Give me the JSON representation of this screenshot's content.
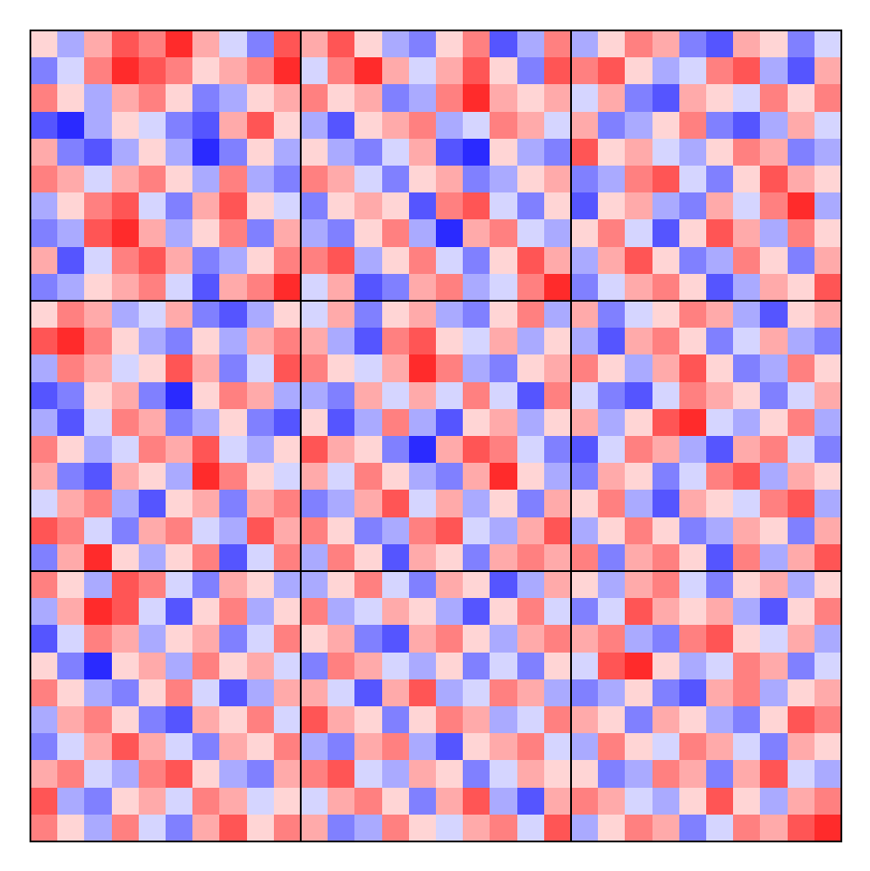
{
  "chart_data": [
    {
      "type": "heatmap",
      "zlim": [
        -0.6,
        0.6
      ],
      "tick_labels": false,
      "cells": [
        [
          0.1,
          -0.2,
          0.2,
          0.4,
          0.3,
          0.5,
          0.2,
          -0.1,
          -0.3,
          0.4
        ],
        [
          -0.3,
          -0.1,
          0.3,
          0.5,
          0.4,
          0.3,
          0.1,
          0.2,
          0.3,
          0.5
        ],
        [
          0.3,
          0.1,
          -0.2,
          0.2,
          0.3,
          0.1,
          -0.3,
          -0.2,
          0.1,
          0.2
        ],
        [
          -0.4,
          -0.5,
          -0.2,
          0.1,
          -0.1,
          -0.3,
          -0.4,
          0.2,
          0.4,
          0.1
        ],
        [
          0.2,
          -0.3,
          -0.4,
          -0.2,
          0.1,
          -0.2,
          -0.5,
          -0.3,
          0.1,
          -0.2
        ],
        [
          0.3,
          0.2,
          -0.1,
          0.2,
          0.3,
          0.1,
          -0.2,
          0.3,
          -0.2,
          -0.3
        ],
        [
          -0.2,
          0.1,
          0.3,
          0.4,
          -0.1,
          -0.3,
          0.2,
          0.4,
          0.1,
          -0.1
        ],
        [
          -0.3,
          -0.2,
          0.4,
          0.5,
          0.2,
          -0.2,
          0.1,
          0.3,
          -0.3,
          0.2
        ],
        [
          0.2,
          -0.4,
          -0.1,
          0.3,
          0.4,
          0.2,
          -0.3,
          -0.2,
          0.1,
          0.3
        ],
        [
          -0.3,
          -0.2,
          0.1,
          0.2,
          0.3,
          -0.1,
          -0.4,
          0.2,
          0.3,
          0.5
        ]
      ]
    },
    {
      "type": "heatmap",
      "zlim": [
        -0.6,
        0.6
      ],
      "tick_labels": false,
      "cells": [
        [
          0.2,
          0.4,
          0.1,
          -0.2,
          -0.3,
          0.1,
          0.3,
          -0.4,
          -0.2,
          0.3
        ],
        [
          -0.1,
          0.3,
          0.5,
          0.2,
          -0.1,
          0.2,
          0.4,
          0.1,
          -0.3,
          0.4
        ],
        [
          0.3,
          0.1,
          0.2,
          -0.3,
          -0.2,
          0.3,
          0.5,
          0.2,
          0.1,
          0.2
        ],
        [
          -0.2,
          -0.4,
          0.1,
          0.2,
          0.3,
          -0.2,
          -0.1,
          0.3,
          0.2,
          -0.1
        ],
        [
          0.1,
          -0.2,
          -0.3,
          -0.1,
          0.2,
          -0.4,
          -0.5,
          0.1,
          -0.2,
          -0.3
        ],
        [
          0.3,
          0.2,
          -0.1,
          -0.3,
          0.1,
          0.2,
          -0.3,
          -0.2,
          0.1,
          0.2
        ],
        [
          -0.3,
          0.1,
          0.2,
          0.1,
          -0.4,
          0.3,
          0.4,
          -0.1,
          -0.3,
          0.1
        ],
        [
          -0.2,
          -0.3,
          0.1,
          0.3,
          -0.2,
          -0.5,
          0.2,
          0.3,
          -0.1,
          -0.2
        ],
        [
          0.3,
          0.4,
          -0.2,
          0.1,
          0.3,
          -0.1,
          -0.3,
          0.1,
          0.4,
          0.2
        ],
        [
          -0.1,
          0.2,
          -0.4,
          -0.3,
          0.2,
          0.3,
          -0.2,
          -0.1,
          0.3,
          0.5
        ]
      ]
    },
    {
      "type": "heatmap",
      "zlim": [
        -0.6,
        0.6
      ],
      "tick_labels": false,
      "cells": [
        [
          -0.2,
          0.1,
          0.3,
          0.2,
          -0.3,
          -0.4,
          0.2,
          0.1,
          -0.3,
          -0.1
        ],
        [
          0.3,
          0.4,
          0.1,
          -0.2,
          -0.1,
          0.3,
          0.4,
          -0.2,
          -0.4,
          0.2
        ],
        [
          -0.1,
          0.2,
          -0.3,
          -0.4,
          0.2,
          0.1,
          -0.1,
          0.3,
          0.1,
          0.3
        ],
        [
          0.2,
          -0.3,
          -0.2,
          0.1,
          0.3,
          -0.3,
          -0.4,
          -0.2,
          0.2,
          -0.1
        ],
        [
          0.4,
          0.1,
          0.2,
          -0.1,
          -0.2,
          0.1,
          0.3,
          0.2,
          -0.3,
          -0.2
        ],
        [
          -0.3,
          -0.2,
          0.3,
          0.4,
          -0.1,
          -0.3,
          0.1,
          0.4,
          0.2,
          0.1
        ],
        [
          -0.4,
          0.1,
          0.2,
          -0.2,
          -0.3,
          0.2,
          -0.1,
          0.3,
          0.5,
          -0.2
        ],
        [
          0.1,
          0.3,
          -0.1,
          -0.4,
          0.1,
          0.4,
          0.2,
          -0.2,
          0.3,
          0.1
        ],
        [
          -0.2,
          0.2,
          0.4,
          0.1,
          -0.3,
          -0.2,
          0.3,
          0.1,
          -0.3,
          0.2
        ],
        [
          -0.3,
          -0.1,
          0.2,
          0.3,
          0.1,
          -0.4,
          -0.2,
          0.2,
          0.1,
          0.4
        ]
      ]
    },
    {
      "type": "heatmap",
      "zlim": [
        -0.6,
        0.6
      ],
      "tick_labels": false,
      "cells": [
        [
          0.1,
          0.3,
          0.2,
          -0.2,
          -0.1,
          0.2,
          -0.3,
          -0.4,
          -0.2,
          0.1
        ],
        [
          0.4,
          0.5,
          0.3,
          0.1,
          -0.2,
          -0.3,
          0.1,
          -0.2,
          0.2,
          0.3
        ],
        [
          -0.2,
          0.3,
          0.2,
          -0.1,
          0.1,
          0.4,
          0.2,
          -0.3,
          -0.1,
          0.4
        ],
        [
          -0.4,
          -0.3,
          0.1,
          0.2,
          -0.3,
          -0.5,
          0.1,
          0.3,
          0.2,
          -0.2
        ],
        [
          -0.2,
          -0.4,
          -0.1,
          0.3,
          0.2,
          -0.3,
          -0.2,
          0.1,
          -0.3,
          -0.4
        ],
        [
          0.3,
          0.1,
          -0.2,
          -0.1,
          0.3,
          0.2,
          0.4,
          -0.1,
          -0.2,
          0.1
        ],
        [
          0.2,
          -0.3,
          -0.4,
          0.2,
          0.1,
          -0.2,
          0.5,
          0.3,
          0.1,
          -0.1
        ],
        [
          -0.1,
          0.2,
          0.3,
          -0.2,
          -0.4,
          0.1,
          0.2,
          -0.3,
          0.2,
          0.3
        ],
        [
          0.4,
          0.3,
          -0.1,
          -0.3,
          0.2,
          0.3,
          -0.1,
          -0.2,
          0.4,
          0.2
        ],
        [
          -0.3,
          0.2,
          0.5,
          0.1,
          -0.2,
          0.1,
          0.3,
          -0.4,
          -0.1,
          0.3
        ]
      ]
    },
    {
      "type": "heatmap",
      "zlim": [
        -0.6,
        0.6
      ],
      "tick_labels": false,
      "cells": [
        [
          -0.1,
          0.2,
          -0.3,
          0.1,
          0.2,
          -0.2,
          -0.3,
          0.1,
          0.3,
          -0.2
        ],
        [
          0.2,
          -0.2,
          -0.4,
          0.3,
          0.4,
          0.1,
          -0.1,
          0.2,
          -0.2,
          0.1
        ],
        [
          0.3,
          0.1,
          -0.1,
          0.2,
          0.5,
          0.3,
          -0.2,
          -0.3,
          0.1,
          0.2
        ],
        [
          -0.2,
          -0.3,
          0.2,
          -0.1,
          0.2,
          -0.1,
          0.3,
          -0.1,
          -0.4,
          0.3
        ],
        [
          0.1,
          -0.4,
          -0.2,
          0.3,
          -0.2,
          -0.4,
          0.1,
          0.2,
          -0.2,
          0.1
        ],
        [
          0.4,
          0.2,
          0.1,
          -0.3,
          -0.5,
          0.2,
          0.4,
          0.3,
          -0.1,
          -0.3
        ],
        [
          0.2,
          -0.1,
          0.3,
          0.1,
          -0.2,
          -0.3,
          0.2,
          0.5,
          0.1,
          -0.2
        ],
        [
          -0.3,
          -0.2,
          0.2,
          0.4,
          -0.1,
          0.2,
          -0.2,
          0.1,
          -0.3,
          0.2
        ],
        [
          0.3,
          0.1,
          -0.3,
          -0.2,
          0.3,
          0.4,
          -0.1,
          -0.2,
          0.2,
          0.4
        ],
        [
          -0.2,
          0.3,
          0.1,
          -0.4,
          0.2,
          0.1,
          -0.3,
          0.2,
          0.3,
          0.2
        ]
      ]
    },
    {
      "type": "heatmap",
      "zlim": [
        -0.6,
        0.6
      ],
      "tick_labels": false,
      "cells": [
        [
          0.2,
          -0.3,
          -0.1,
          0.1,
          0.3,
          0.2,
          -0.2,
          -0.4,
          0.1,
          0.2
        ],
        [
          -0.2,
          -0.4,
          0.2,
          0.3,
          0.1,
          -0.3,
          -0.1,
          0.2,
          -0.2,
          -0.3
        ],
        [
          0.3,
          0.1,
          -0.2,
          0.2,
          0.4,
          0.1,
          -0.3,
          -0.2,
          0.3,
          0.1
        ],
        [
          -0.1,
          -0.3,
          -0.4,
          -0.1,
          0.3,
          0.2,
          0.1,
          -0.3,
          -0.1,
          0.2
        ],
        [
          0.2,
          -0.2,
          0.1,
          0.4,
          0.5,
          -0.1,
          -0.2,
          0.1,
          0.3,
          -0.2
        ],
        [
          -0.4,
          -0.1,
          0.3,
          0.2,
          -0.2,
          -0.4,
          0.2,
          0.3,
          -0.1,
          -0.3
        ],
        [
          -0.3,
          0.2,
          0.1,
          -0.3,
          -0.1,
          0.3,
          0.4,
          -0.2,
          0.2,
          0.1
        ],
        [
          0.1,
          0.3,
          -0.2,
          -0.4,
          0.2,
          0.1,
          -0.1,
          0.3,
          0.4,
          -0.2
        ],
        [
          -0.2,
          0.1,
          0.3,
          0.1,
          -0.3,
          -0.2,
          0.2,
          0.1,
          -0.3,
          0.2
        ],
        [
          0.3,
          -0.3,
          0.2,
          0.3,
          0.1,
          -0.4,
          0.3,
          -0.2,
          0.2,
          0.4
        ]
      ]
    },
    {
      "type": "heatmap",
      "zlim": [
        -0.6,
        0.6
      ],
      "tick_labels": false,
      "cells": [
        [
          0.3,
          0.1,
          -0.2,
          0.4,
          0.3,
          -0.1,
          -0.3,
          0.2,
          0.1,
          -0.2
        ],
        [
          -0.2,
          0.2,
          0.5,
          0.4,
          -0.1,
          -0.4,
          0.1,
          0.3,
          -0.2,
          0.1
        ],
        [
          -0.4,
          -0.1,
          0.3,
          0.2,
          -0.2,
          0.1,
          0.2,
          -0.3,
          -0.1,
          0.3
        ],
        [
          0.1,
          -0.3,
          -0.5,
          0.1,
          0.2,
          -0.2,
          0.3,
          0.1,
          0.2,
          -0.1
        ],
        [
          0.3,
          0.1,
          -0.2,
          -0.3,
          0.1,
          0.3,
          -0.1,
          -0.4,
          -0.2,
          0.2
        ],
        [
          -0.2,
          0.2,
          0.3,
          0.1,
          -0.3,
          -0.4,
          0.2,
          0.1,
          0.3,
          -0.1
        ],
        [
          -0.3,
          -0.1,
          0.2,
          0.4,
          0.2,
          -0.1,
          -0.3,
          0.2,
          0.1,
          0.3
        ],
        [
          0.2,
          0.3,
          -0.1,
          -0.2,
          0.3,
          0.4,
          0.1,
          -0.2,
          -0.3,
          0.2
        ],
        [
          0.4,
          -0.2,
          -0.3,
          0.1,
          0.2,
          -0.1,
          0.3,
          0.2,
          -0.1,
          0.1
        ],
        [
          0.3,
          0.1,
          -0.2,
          0.3,
          -0.1,
          -0.3,
          0.2,
          0.4,
          0.1,
          0.3
        ]
      ]
    },
    {
      "type": "heatmap",
      "zlim": [
        -0.6,
        0.6
      ],
      "tick_labels": false,
      "cells": [
        [
          -0.2,
          0.1,
          0.3,
          -0.1,
          -0.3,
          0.2,
          0.1,
          -0.4,
          -0.2,
          0.2
        ],
        [
          0.3,
          -0.2,
          -0.1,
          0.2,
          0.1,
          -0.2,
          -0.4,
          0.1,
          0.3,
          -0.1
        ],
        [
          0.1,
          0.2,
          -0.3,
          -0.4,
          0.2,
          0.3,
          0.1,
          -0.2,
          0.2,
          0.3
        ],
        [
          -0.3,
          0.3,
          0.2,
          -0.1,
          -0.2,
          0.1,
          -0.3,
          -0.1,
          -0.3,
          0.1
        ],
        [
          0.2,
          -0.1,
          -0.4,
          0.2,
          0.4,
          -0.2,
          -0.1,
          0.3,
          0.2,
          -0.2
        ],
        [
          0.4,
          0.2,
          0.1,
          -0.3,
          0.1,
          0.3,
          0.2,
          -0.2,
          -0.1,
          0.3
        ],
        [
          -0.2,
          -0.3,
          0.2,
          0.3,
          -0.2,
          -0.4,
          0.1,
          0.2,
          0.3,
          -0.1
        ],
        [
          0.3,
          0.4,
          -0.1,
          -0.2,
          0.2,
          0.1,
          -0.3,
          -0.1,
          0.2,
          0.1
        ],
        [
          -0.1,
          0.2,
          0.3,
          0.1,
          -0.3,
          0.2,
          0.4,
          -0.2,
          -0.4,
          0.2
        ],
        [
          0.2,
          -0.3,
          -0.2,
          0.3,
          0.1,
          -0.1,
          0.2,
          0.3,
          -0.1,
          0.4
        ]
      ]
    },
    {
      "type": "heatmap",
      "zlim": [
        -0.6,
        0.6
      ],
      "tick_labels": false,
      "cells": [
        [
          0.1,
          -0.2,
          0.2,
          0.3,
          -0.1,
          -0.3,
          0.1,
          0.2,
          -0.2,
          0.1
        ],
        [
          -0.3,
          -0.1,
          0.4,
          0.2,
          0.1,
          0.2,
          -0.2,
          -0.4,
          0.1,
          0.3
        ],
        [
          0.2,
          0.3,
          -0.2,
          -0.3,
          0.3,
          0.4,
          0.1,
          -0.1,
          0.2,
          -0.2
        ],
        [
          -0.1,
          0.4,
          0.5,
          0.1,
          -0.2,
          -0.1,
          0.3,
          0.2,
          -0.3,
          -0.1
        ],
        [
          -0.3,
          -0.2,
          0.1,
          -0.3,
          -0.4,
          0.2,
          0.3,
          -0.2,
          0.1,
          0.2
        ],
        [
          0.2,
          0.1,
          -0.3,
          0.2,
          0.1,
          -0.2,
          -0.3,
          0.1,
          0.4,
          0.3
        ],
        [
          -0.2,
          0.3,
          0.1,
          -0.1,
          0.3,
          0.2,
          -0.1,
          -0.3,
          0.2,
          0.1
        ],
        [
          0.1,
          -0.3,
          -0.2,
          0.3,
          0.2,
          -0.3,
          0.2,
          0.4,
          -0.1,
          -0.2
        ],
        [
          0.3,
          0.2,
          -0.1,
          -0.2,
          0.1,
          0.4,
          0.1,
          -0.2,
          0.2,
          0.3
        ],
        [
          -0.2,
          0.1,
          0.3,
          0.2,
          -0.3,
          -0.1,
          0.3,
          0.2,
          0.4,
          0.5
        ]
      ]
    }
  ]
}
